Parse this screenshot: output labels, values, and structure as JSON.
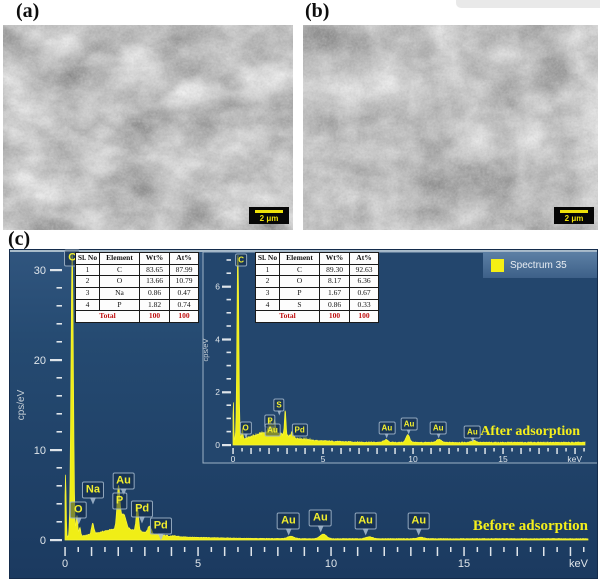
{
  "panels": {
    "a": {
      "label": "(a)",
      "scale_bar": "2 μm"
    },
    "b": {
      "label": "(b)",
      "scale_bar": "2 μm"
    },
    "c": {
      "label": "(c)"
    }
  },
  "legend": {
    "label": "Spectrum 35",
    "swatch_color": "#f5ef14"
  },
  "colors": {
    "spectrum_yellow": "#f0ee16",
    "plot_bg_top": "#30557e",
    "plot_bg_bottom": "#1b3a60",
    "tick": "#dfe5ea",
    "annotation_yellow": "#f4ef1c",
    "table_total_red": "#c01010"
  },
  "tables": {
    "headers": [
      "Sl. No",
      "Element",
      "Wt%",
      "At%"
    ],
    "before": {
      "rows": [
        [
          "1",
          "C",
          "83.65",
          "87.99"
        ],
        [
          "2",
          "O",
          "13.66",
          "10.79"
        ],
        [
          "3",
          "Na",
          "0.86",
          "0.47"
        ],
        [
          "4",
          "P",
          "1.82",
          "0.74"
        ]
      ],
      "total": [
        "Total",
        "100",
        "100"
      ]
    },
    "after": {
      "rows": [
        [
          "1",
          "C",
          "89.30",
          "92.63"
        ],
        [
          "2",
          "O",
          "8.17",
          "6.36"
        ],
        [
          "3",
          "P",
          "1.67",
          "0.67"
        ],
        [
          "4",
          "S",
          "0.86",
          "0.33"
        ]
      ],
      "total": [
        "Total",
        "100",
        "100"
      ]
    }
  },
  "chart_data": [
    {
      "type": "area",
      "name": "EDS spectrum before adsorption",
      "annotation": "Before adsorption",
      "xlabel": "keV",
      "ylabel": "cps/eV",
      "xlim": [
        0,
        19.6
      ],
      "ylim": [
        0,
        33
      ],
      "xticks": [
        0,
        5,
        10,
        15
      ],
      "yticks": [
        0,
        10,
        20,
        30
      ],
      "continuum": {
        "base": 0.12,
        "humps": [
          {
            "a": 0.85,
            "c": 2.1,
            "s": 0.75
          },
          {
            "a": 0.25,
            "c": 3.0,
            "s": 2.0
          }
        ]
      },
      "noise": {
        "near": 0.14,
        "far": 0.05,
        "cut": 4.3
      },
      "peaks": [
        {
          "element": "zero",
          "x": 0.02,
          "h": 7.0,
          "w": 0.022
        },
        {
          "element": "C",
          "x": 0.27,
          "h": 32.0,
          "w": 0.045
        },
        {
          "element": "O",
          "x": 0.45,
          "h": 2.4,
          "w": 0.03
        },
        {
          "element": "O",
          "x": 0.56,
          "h": 1.0,
          "w": 0.03
        },
        {
          "element": "Na",
          "x": 1.04,
          "h": 1.2,
          "w": 0.045
        },
        {
          "element": "P",
          "x": 2.01,
          "h": 4.6,
          "w": 0.055
        },
        {
          "element": "Au",
          "x": 2.2,
          "h": 1.6,
          "w": 0.09
        },
        {
          "element": "Pd",
          "x": 2.72,
          "h": 2.6,
          "w": 0.045
        },
        {
          "element": "Pd",
          "x": 3.18,
          "h": 0.85,
          "w": 0.06
        },
        {
          "element": "Au",
          "x": 8.49,
          "h": 0.28,
          "w": 0.12
        },
        {
          "element": "Au",
          "x": 9.71,
          "h": 0.5,
          "w": 0.12
        },
        {
          "element": "Au",
          "x": 11.44,
          "h": 0.22,
          "w": 0.12
        },
        {
          "element": "Au",
          "x": 13.38,
          "h": 0.16,
          "w": 0.12
        }
      ],
      "labels": [
        {
          "text": "C",
          "x": 0.27,
          "y": 31.3,
          "tail": false
        },
        {
          "text": "O",
          "x": 0.5,
          "y": 3.3
        },
        {
          "text": "Na",
          "x": 1.05,
          "y": 5.6
        },
        {
          "text": "Au",
          "x": 2.2,
          "y": 6.6
        },
        {
          "text": "P",
          "x": 2.05,
          "y": 4.3,
          "tail": false
        },
        {
          "text": "Pd",
          "x": 2.9,
          "y": 3.5
        },
        {
          "text": "Pd",
          "x": 3.6,
          "y": 1.6
        },
        {
          "text": "Au",
          "x": 8.4,
          "y": 2.1
        },
        {
          "text": "Au",
          "x": 9.6,
          "y": 2.5
        },
        {
          "text": "Au",
          "x": 11.3,
          "y": 2.1
        },
        {
          "text": "Au",
          "x": 13.3,
          "y": 2.1
        }
      ]
    },
    {
      "type": "area",
      "name": "EDS spectrum after adsorption (inset)",
      "annotation": "After adsorption",
      "xlabel": "keV",
      "ylabel": "cps/eV",
      "xlim": [
        0,
        19.5
      ],
      "ylim": [
        0,
        7.3
      ],
      "xticks": [
        0,
        5,
        10,
        15
      ],
      "yticks": [
        0,
        2,
        4,
        6
      ],
      "continuum": {
        "base": 0.08,
        "humps": [
          {
            "a": 0.28,
            "c": 2.0,
            "s": 0.8
          },
          {
            "a": 0.1,
            "c": 3.0,
            "s": 2.0
          }
        ]
      },
      "noise": {
        "near": 0.09,
        "far": 0.035,
        "cut": 4.3
      },
      "peaks": [
        {
          "element": "zero",
          "x": 0.02,
          "h": 1.6,
          "w": 0.02
        },
        {
          "element": "C",
          "x": 0.27,
          "h": 7.4,
          "w": 0.05
        },
        {
          "element": "O",
          "x": 0.52,
          "h": 0.4,
          "w": 0.035
        },
        {
          "element": "P",
          "x": 2.01,
          "h": 0.42,
          "w": 0.05
        },
        {
          "element": "Au",
          "x": 2.15,
          "h": 0.3,
          "w": 0.09
        },
        {
          "element": "S",
          "x": 2.31,
          "h": 0.38,
          "w": 0.05
        },
        {
          "element": "Pd",
          "x": 2.9,
          "h": 0.95,
          "w": 0.04
        },
        {
          "element": "Pd",
          "x": 3.3,
          "h": 0.22,
          "w": 0.06
        },
        {
          "element": "Au",
          "x": 8.49,
          "h": 0.1,
          "w": 0.12
        },
        {
          "element": "Au",
          "x": 9.71,
          "h": 0.3,
          "w": 0.1
        },
        {
          "element": "Au",
          "x": 11.44,
          "h": 0.12,
          "w": 0.12
        },
        {
          "element": "Au",
          "x": 13.38,
          "h": 0.08,
          "w": 0.12
        }
      ],
      "labels": [
        {
          "text": "C",
          "x": 0.45,
          "y": 7.0,
          "tail": false
        },
        {
          "text": "O",
          "x": 0.7,
          "y": 0.65
        },
        {
          "text": "P",
          "x": 2.06,
          "y": 0.91
        },
        {
          "text": "S",
          "x": 2.56,
          "y": 1.52
        },
        {
          "text": "Au",
          "x": 2.2,
          "y": 0.57,
          "tail": false
        },
        {
          "text": "Pd",
          "x": 3.7,
          "y": 0.57,
          "tail": false
        },
        {
          "text": "Au",
          "x": 8.55,
          "y": 0.65
        },
        {
          "text": "Au",
          "x": 9.78,
          "y": 0.8
        },
        {
          "text": "Au",
          "x": 11.4,
          "y": 0.65
        },
        {
          "text": "Au",
          "x": 13.3,
          "y": 0.49
        }
      ]
    }
  ]
}
